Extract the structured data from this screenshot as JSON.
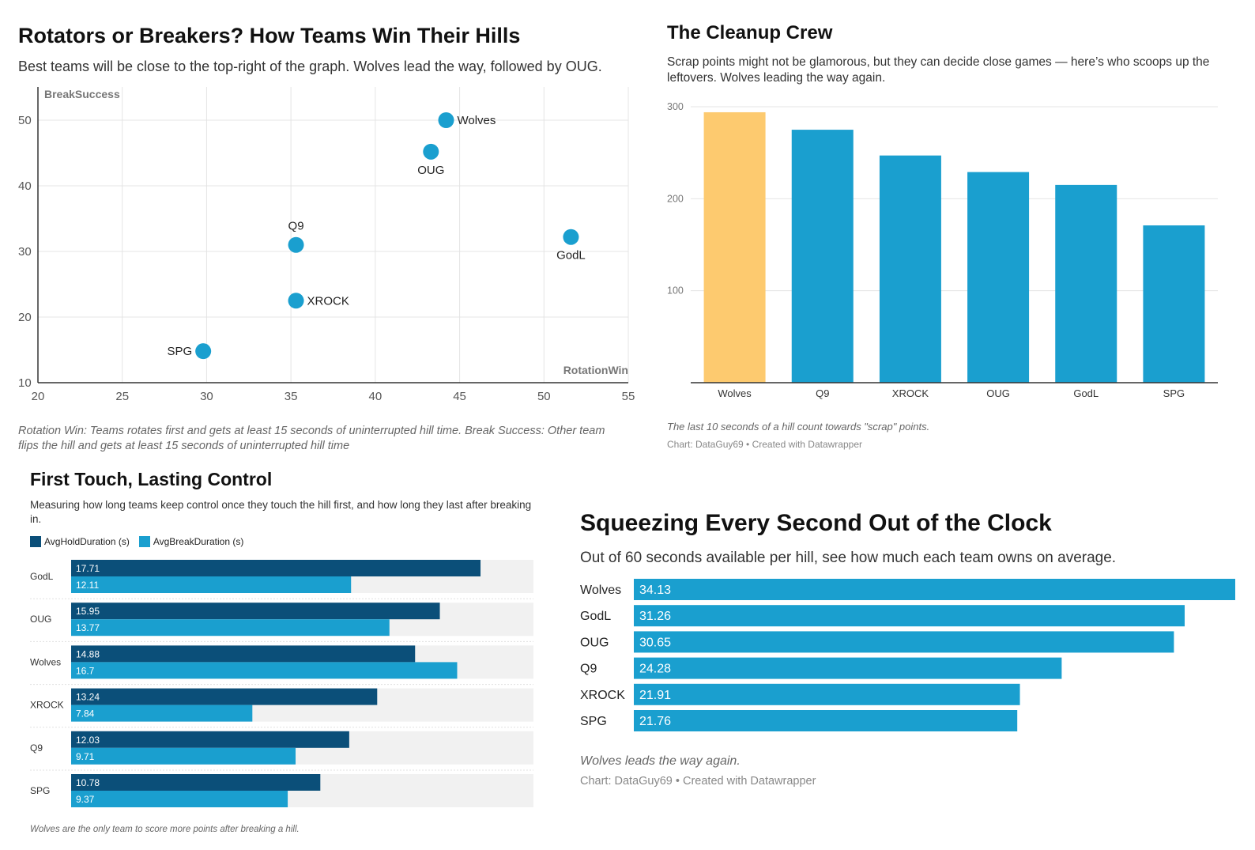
{
  "colors": {
    "bar": "#1a9fcf",
    "highlight": "#fdca6f",
    "dark": "#0b4f79",
    "track": "#f1f1f1",
    "grid": "#e4e4e4"
  },
  "scatter": {
    "title": "Rotators or Breakers? How Teams Win Their Hills",
    "subtitle": "Best teams will be close to the top-right of the graph. Wolves lead the way, followed by OUG.",
    "note": "Rotation Win: Teams rotates first and gets at least 15 seconds of uninterrupted hill time. Break Success: Other team flips the hill and gets at least 15 seconds of uninterrupted hill time",
    "chart_data": {
      "type": "scatter",
      "xlabel": "RotationWin",
      "ylabel": "BreakSuccess",
      "xlim": [
        20,
        55
      ],
      "ylim": [
        10,
        50
      ],
      "xticks": [
        20,
        25,
        30,
        35,
        40,
        45,
        50,
        55
      ],
      "yticks": [
        10,
        20,
        30,
        40,
        50
      ],
      "grid": true,
      "points": [
        {
          "label": "Wolves",
          "x": 44.2,
          "y": 50.0,
          "label_pos": "right"
        },
        {
          "label": "OUG",
          "x": 43.3,
          "y": 45.2,
          "label_pos": "below"
        },
        {
          "label": "Q9",
          "x": 35.3,
          "y": 31.0,
          "label_pos": "above"
        },
        {
          "label": "GodL",
          "x": 51.6,
          "y": 32.2,
          "label_pos": "below"
        },
        {
          "label": "XROCK",
          "x": 35.3,
          "y": 22.5,
          "label_pos": "right"
        },
        {
          "label": "SPG",
          "x": 29.8,
          "y": 14.8,
          "label_pos": "left"
        }
      ]
    }
  },
  "column": {
    "title": "The Cleanup Crew",
    "subtitle": "Scrap points might not be glamorous, but they can decide close games — here’s who scoops up the leftovers. Wolves leading the way again.",
    "note": "The last 10 seconds of a hill count towards \"scrap\" points.",
    "credit": "Chart: DataGuy69 • Created with Datawrapper",
    "chart_data": {
      "type": "bar",
      "categories": [
        "Wolves",
        "Q9",
        "XROCK",
        "OUG",
        "GodL",
        "SPG"
      ],
      "values": [
        294,
        275,
        247,
        229,
        215,
        171
      ],
      "highlight": "Wolves",
      "ylim": [
        0,
        300
      ],
      "yticks": [
        100,
        200,
        300
      ],
      "grid": true
    }
  },
  "grouped": {
    "title": "First Touch, Lasting Control",
    "subtitle": "Measuring how long teams keep control once they touch the hill first, and how long they last after breaking in.",
    "note": "Wolves are the only team to score more points after breaking a hill.",
    "chart_data": {
      "type": "bar",
      "orientation": "horizontal",
      "categories": [
        "GodL",
        "OUG",
        "Wolves",
        "XROCK",
        "Q9",
        "SPG"
      ],
      "series": [
        {
          "name": "AvgHoldDuration (s)",
          "values": [
            17.71,
            15.95,
            14.88,
            13.24,
            12.03,
            10.78
          ]
        },
        {
          "name": "AvgBreakDuration (s)",
          "values": [
            12.11,
            13.77,
            16.7,
            7.84,
            9.71,
            9.37
          ]
        }
      ],
      "xlim": [
        0,
        20
      ],
      "legend": "top-left"
    }
  },
  "hbar": {
    "title": "Squeezing Every Second Out of the Clock",
    "subtitle": "Out of 60 seconds available per hill, see how much each team owns on average.",
    "note": "Wolves leads the way again.",
    "credit": "Chart: DataGuy69 • Created with Datawrapper",
    "chart_data": {
      "type": "bar",
      "orientation": "horizontal",
      "categories": [
        "Wolves",
        "GodL",
        "OUG",
        "Q9",
        "XROCK",
        "SPG"
      ],
      "values": [
        34.13,
        31.26,
        30.65,
        24.28,
        21.91,
        21.76
      ],
      "xlim": [
        0,
        34.13
      ]
    }
  }
}
